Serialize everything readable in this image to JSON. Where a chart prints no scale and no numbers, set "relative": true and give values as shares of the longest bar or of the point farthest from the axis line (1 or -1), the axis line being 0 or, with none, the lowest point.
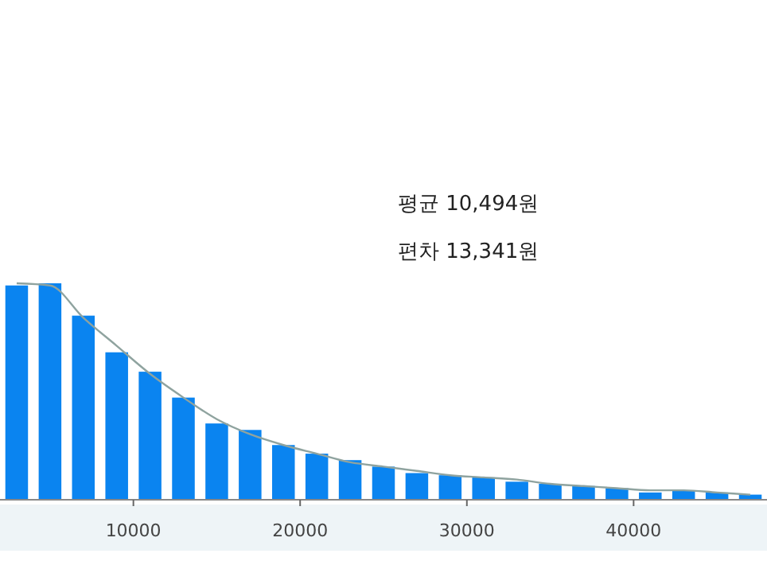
{
  "chart_data": {
    "type": "bar",
    "relative": true,
    "x": [
      3000,
      5000,
      7000,
      9000,
      11000,
      13000,
      15000,
      17000,
      19000,
      21000,
      23000,
      25000,
      27000,
      29000,
      31000,
      33000,
      35000,
      37000,
      39000,
      41000,
      43000,
      45000,
      47000
    ],
    "values": [
      0.99,
      1,
      0.85,
      0.68,
      0.59,
      0.47,
      0.35,
      0.32,
      0.25,
      0.21,
      0.18,
      0.15,
      0.12,
      0.11,
      0.1,
      0.08,
      0.07,
      0.06,
      0.05,
      0.03,
      0.04,
      0.03,
      0.02
    ],
    "color": "#0a84f0",
    "series": [
      {
        "type": "line",
        "color": "#8fa39f",
        "x": [
          3000,
          5000,
          7000,
          9000,
          11000,
          13000,
          15000,
          17000,
          19000,
          21000,
          23000,
          25000,
          27000,
          29000,
          31000,
          33000,
          35000,
          37000,
          39000,
          41000,
          43000,
          45000,
          47000
        ],
        "values": [
          1,
          0.99,
          0.84,
          0.71,
          0.58,
          0.47,
          0.37,
          0.3,
          0.25,
          0.21,
          0.17,
          0.15,
          0.13,
          0.11,
          0.1,
          0.09,
          0.07,
          0.06,
          0.05,
          0.04,
          0.04,
          0.03,
          0.02
        ]
      }
    ],
    "xlim": [
      2000,
      48000
    ],
    "xticks": [
      10000,
      20000,
      30000,
      40000
    ],
    "annotations": [
      "평균 10,494원",
      "편차 13,341원"
    ]
  }
}
